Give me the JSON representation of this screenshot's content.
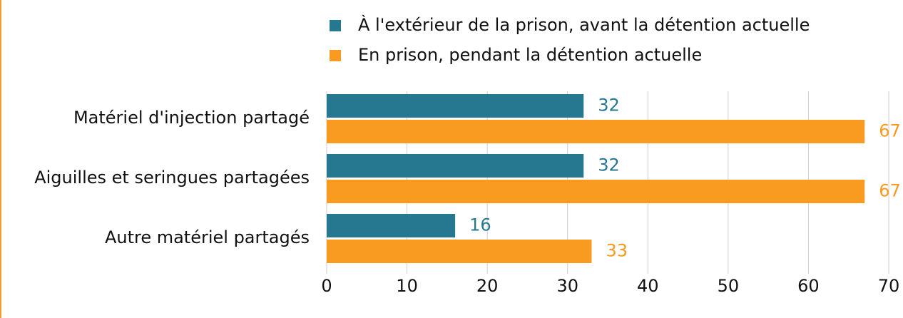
{
  "chart_data": {
    "type": "hbar",
    "categories": [
      "Matériel d'injection partagé",
      "Aiguilles et seringues partagées",
      "Autre matériel partagés"
    ],
    "series": [
      {
        "name": "À l'extérieur de la prison, avant la détention actuelle",
        "color": "#267891",
        "values": [
          32,
          32,
          16
        ]
      },
      {
        "name": "En prison, pendant la détention actuelle",
        "color": "#f89b20",
        "values": [
          67,
          67,
          33
        ]
      }
    ],
    "xlim": [
      0,
      70
    ],
    "xticks": [
      0,
      10,
      20,
      30,
      40,
      50,
      60,
      70
    ],
    "grid": true,
    "legend": "top"
  }
}
